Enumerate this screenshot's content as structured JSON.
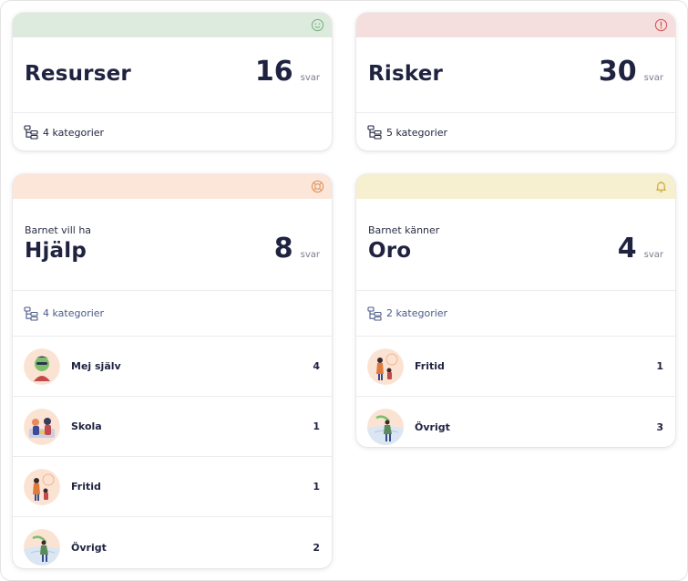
{
  "cards": {
    "resurser": {
      "title": "Resurser",
      "count": "16",
      "unit": "svar",
      "categories": "4 kategorier",
      "icon": "smiley-icon",
      "head_color": "#dcebdd"
    },
    "risker": {
      "title": "Risker",
      "count": "30",
      "unit": "svar",
      "categories": "5 kategorier",
      "icon": "alert-circle-icon",
      "head_color": "#f5dede"
    },
    "hjalp": {
      "label": "Barnet vill ha",
      "title": "Hjälp",
      "count": "8",
      "unit": "svar",
      "categories": "4 kategorier",
      "icon": "lifebuoy-icon",
      "head_color": "#fbe6d9",
      "items": [
        {
          "label": "Mej själv",
          "count": "4",
          "icon": "person-avatar-icon"
        },
        {
          "label": "Skola",
          "count": "1",
          "icon": "school-avatar-icon"
        },
        {
          "label": "Fritid",
          "count": "1",
          "icon": "leisure-avatar-icon"
        },
        {
          "label": "Övrigt",
          "count": "2",
          "icon": "other-avatar-icon"
        }
      ]
    },
    "oro": {
      "label": "Barnet känner",
      "title": "Oro",
      "count": "4",
      "unit": "svar",
      "categories": "2 kategorier",
      "icon": "bell-icon",
      "head_color": "#f6efd0",
      "items": [
        {
          "label": "Fritid",
          "count": "1",
          "icon": "leisure-avatar-icon"
        },
        {
          "label": "Övrigt",
          "count": "3",
          "icon": "other-avatar-icon"
        }
      ]
    }
  }
}
